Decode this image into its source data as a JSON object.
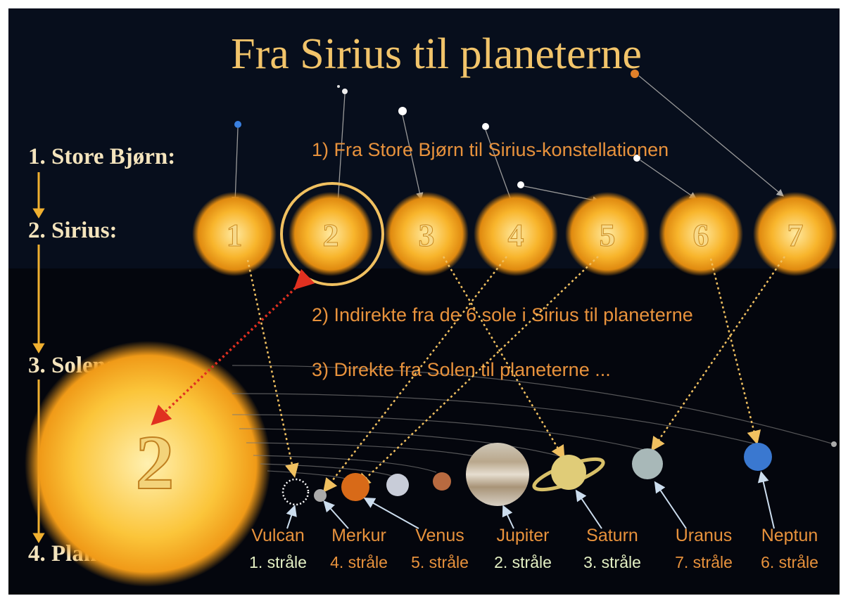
{
  "title": "Fra Sirius til planeterne",
  "levels": [
    "1. Store Bjørn:",
    "2. Sirius:",
    "3. Solen:",
    "4. Planeterne:"
  ],
  "steps": [
    "1) Fra Store Bjørn til Sirius-konstellationen",
    "2) Indirekte fra de 6 sole i Sirius til planeterne",
    "3) Direkte fra Solen til planeterne ..."
  ],
  "suns": [
    "1",
    "2",
    "3",
    "4",
    "5",
    "6",
    "7"
  ],
  "sun_label": "2",
  "planets": [
    {
      "name": "Vulcan",
      "ray": "1. stråle"
    },
    {
      "name": "Merkur",
      "ray": "4. stråle"
    },
    {
      "name": "Venus",
      "ray": "5. stråle"
    },
    {
      "name": "Jupiter",
      "ray": "2. stråle"
    },
    {
      "name": "Saturn",
      "ray": "3. stråle"
    },
    {
      "name": "Uranus",
      "ray": "7. stråle"
    },
    {
      "name": "Neptun",
      "ray": "6. stråle"
    }
  ]
}
